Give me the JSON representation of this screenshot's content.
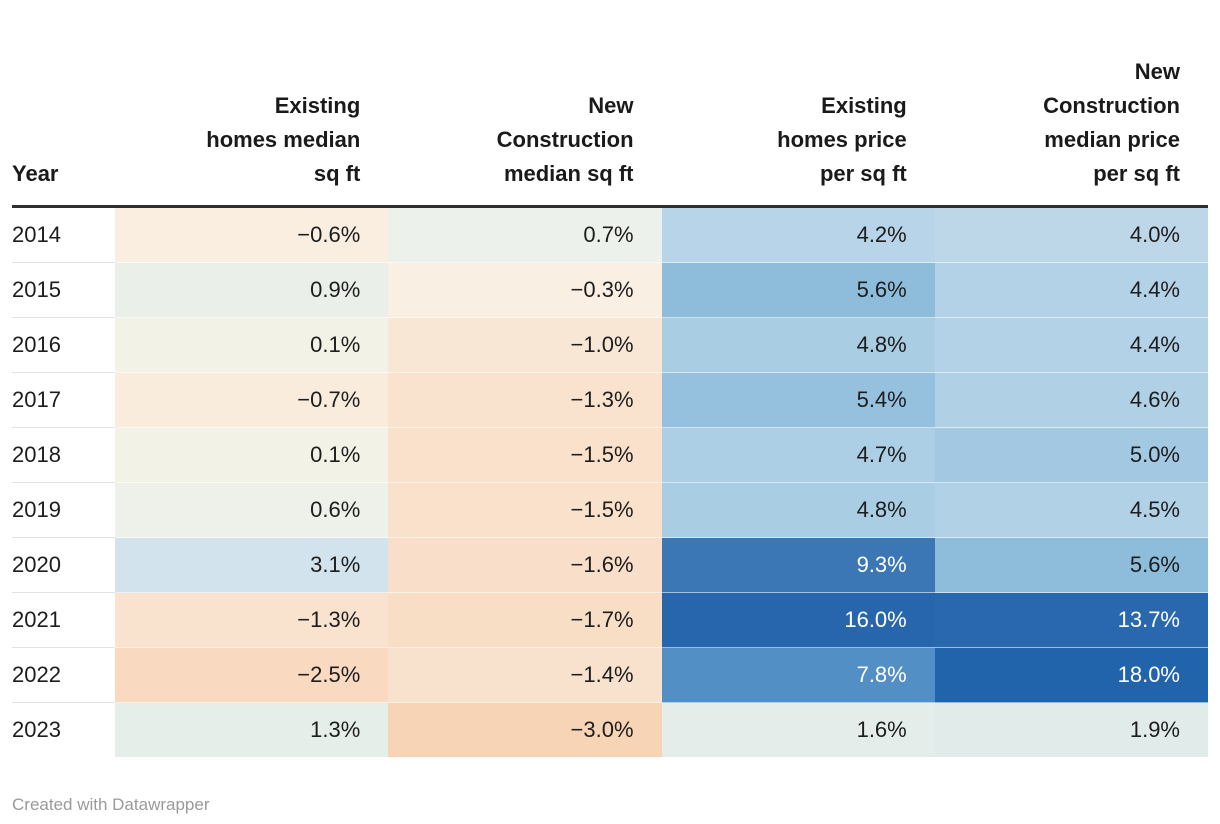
{
  "table": {
    "columns": [
      {
        "label": "Year"
      },
      {
        "label": "Existing\nhomes median\nsq ft"
      },
      {
        "label": "New\nConstruction\nmedian sq ft"
      },
      {
        "label": "Existing\nhomes price\nper sq ft"
      },
      {
        "label": "New\nConstruction\nmedian price\nper sq ft"
      }
    ],
    "rows": [
      {
        "year": "2014",
        "cells": [
          {
            "text": "−0.6%",
            "bg": "#f9eee0",
            "fg": "#1d1d1d"
          },
          {
            "text": "0.7%",
            "bg": "#edf1eb",
            "fg": "#1d1d1d"
          },
          {
            "text": "4.2%",
            "bg": "#b7d4e8",
            "fg": "#1d1d1d"
          },
          {
            "text": "4.0%",
            "bg": "#bdd7e9",
            "fg": "#1d1d1d"
          }
        ]
      },
      {
        "year": "2015",
        "cells": [
          {
            "text": "0.9%",
            "bg": "#eaf0e9",
            "fg": "#1d1d1d"
          },
          {
            "text": "−0.3%",
            "bg": "#f9efe3",
            "fg": "#1d1d1d"
          },
          {
            "text": "5.6%",
            "bg": "#8ebddc",
            "fg": "#1d1d1d"
          },
          {
            "text": "4.4%",
            "bg": "#b3d2e7",
            "fg": "#1d1d1d"
          }
        ]
      },
      {
        "year": "2016",
        "cells": [
          {
            "text": "0.1%",
            "bg": "#f3f2e6",
            "fg": "#1d1d1d"
          },
          {
            "text": "−1.0%",
            "bg": "#f9e7d6",
            "fg": "#1d1d1d"
          },
          {
            "text": "4.8%",
            "bg": "#a9cde3",
            "fg": "#1d1d1d"
          },
          {
            "text": "4.4%",
            "bg": "#b3d2e7",
            "fg": "#1d1d1d"
          }
        ]
      },
      {
        "year": "2017",
        "cells": [
          {
            "text": "−0.7%",
            "bg": "#f9ecdd",
            "fg": "#1d1d1d"
          },
          {
            "text": "−1.3%",
            "bg": "#f9e3cf",
            "fg": "#1d1d1d"
          },
          {
            "text": "5.4%",
            "bg": "#95c1de",
            "fg": "#1d1d1d"
          },
          {
            "text": "4.6%",
            "bg": "#afd0e5",
            "fg": "#1d1d1d"
          }
        ]
      },
      {
        "year": "2018",
        "cells": [
          {
            "text": "0.1%",
            "bg": "#f3f2e6",
            "fg": "#1d1d1d"
          },
          {
            "text": "−1.5%",
            "bg": "#f9e1cb",
            "fg": "#1d1d1d"
          },
          {
            "text": "4.7%",
            "bg": "#adcfe5",
            "fg": "#1d1d1d"
          },
          {
            "text": "5.0%",
            "bg": "#a2c9e1",
            "fg": "#1d1d1d"
          }
        ]
      },
      {
        "year": "2019",
        "cells": [
          {
            "text": "0.6%",
            "bg": "#eef1ea",
            "fg": "#1d1d1d"
          },
          {
            "text": "−1.5%",
            "bg": "#f9e1cb",
            "fg": "#1d1d1d"
          },
          {
            "text": "4.8%",
            "bg": "#a9cde3",
            "fg": "#1d1d1d"
          },
          {
            "text": "4.5%",
            "bg": "#b1d1e6",
            "fg": "#1d1d1d"
          }
        ]
      },
      {
        "year": "2020",
        "cells": [
          {
            "text": "3.1%",
            "bg": "#d2e3ee",
            "fg": "#1d1d1d"
          },
          {
            "text": "−1.6%",
            "bg": "#f9dfc9",
            "fg": "#1d1d1d"
          },
          {
            "text": "9.3%",
            "bg": "#3b77b5",
            "fg": "#ffffff"
          },
          {
            "text": "5.6%",
            "bg": "#8ebddc",
            "fg": "#1d1d1d"
          }
        ]
      },
      {
        "year": "2021",
        "cells": [
          {
            "text": "−1.3%",
            "bg": "#f9e3cf",
            "fg": "#1d1d1d"
          },
          {
            "text": "−1.7%",
            "bg": "#f9dec6",
            "fg": "#1d1d1d"
          },
          {
            "text": "16.0%",
            "bg": "#2766ad",
            "fg": "#ffffff"
          },
          {
            "text": "13.7%",
            "bg": "#2968ae",
            "fg": "#ffffff"
          }
        ]
      },
      {
        "year": "2022",
        "cells": [
          {
            "text": "−2.5%",
            "bg": "#f9d9bf",
            "fg": "#1d1d1d"
          },
          {
            "text": "−1.4%",
            "bg": "#f9e2cd",
            "fg": "#1d1d1d"
          },
          {
            "text": "7.8%",
            "bg": "#528fc4",
            "fg": "#ffffff"
          },
          {
            "text": "18.0%",
            "bg": "#2164ab",
            "fg": "#ffffff"
          }
        ]
      },
      {
        "year": "2023",
        "cells": [
          {
            "text": "1.3%",
            "bg": "#e6eee9",
            "fg": "#1d1d1d"
          },
          {
            "text": "−3.0%",
            "bg": "#f8d4b6",
            "fg": "#1d1d1d"
          },
          {
            "text": "1.6%",
            "bg": "#e4ede9",
            "fg": "#1d1d1d"
          },
          {
            "text": "1.9%",
            "bg": "#e1ebe9",
            "fg": "#1d1d1d"
          }
        ]
      }
    ]
  },
  "footer": {
    "credit": "Created with Datawrapper"
  },
  "chart_data": {
    "type": "table",
    "title": "",
    "columns": [
      "Year",
      "Existing homes median sq ft",
      "New Construction median sq ft",
      "Existing homes price per sq ft",
      "New Construction median price per sq ft"
    ],
    "unit": "%",
    "rows": [
      [
        2014,
        -0.6,
        0.7,
        4.2,
        4.0
      ],
      [
        2015,
        0.9,
        -0.3,
        5.6,
        4.4
      ],
      [
        2016,
        0.1,
        -1.0,
        4.8,
        4.4
      ],
      [
        2017,
        -0.7,
        -1.3,
        5.4,
        4.6
      ],
      [
        2018,
        0.1,
        -1.5,
        4.7,
        5.0
      ],
      [
        2019,
        0.6,
        -1.5,
        4.8,
        4.5
      ],
      [
        2020,
        3.1,
        -1.6,
        9.3,
        5.6
      ],
      [
        2021,
        -1.3,
        -1.7,
        16.0,
        13.7
      ],
      [
        2022,
        -2.5,
        -1.4,
        7.8,
        18.0
      ],
      [
        2023,
        1.3,
        -3.0,
        1.6,
        1.9
      ]
    ],
    "heatmap": true,
    "negative_color": "#f8d4b6",
    "positive_color": "#2164ab",
    "neutral_color": "#f3f2e6"
  }
}
